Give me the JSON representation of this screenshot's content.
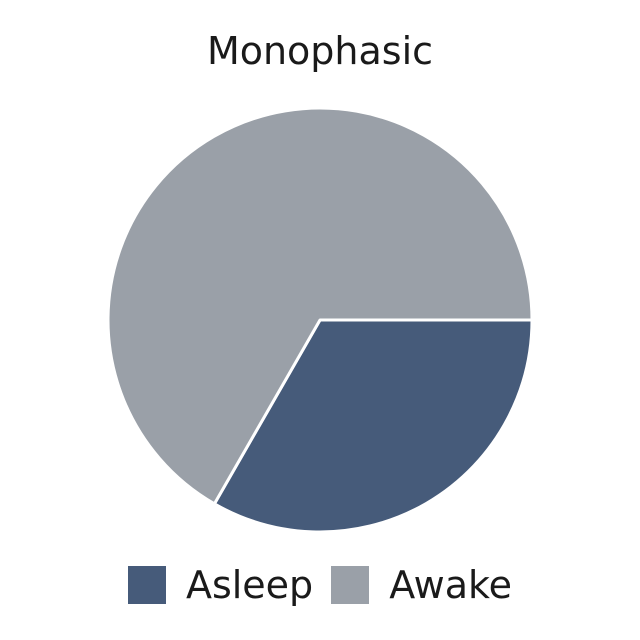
{
  "chart_data": {
    "type": "pie",
    "title": "Monophasic",
    "slices": [
      {
        "label": "Asleep",
        "value": 33.3,
        "color": "#465b7a"
      },
      {
        "label": "Awake",
        "value": 66.7,
        "color": "#9aa0a8"
      }
    ],
    "start_angle_deg": 0,
    "direction": "clockwise",
    "legend_position": "bottom",
    "slice_border_color": "#ffffff"
  }
}
